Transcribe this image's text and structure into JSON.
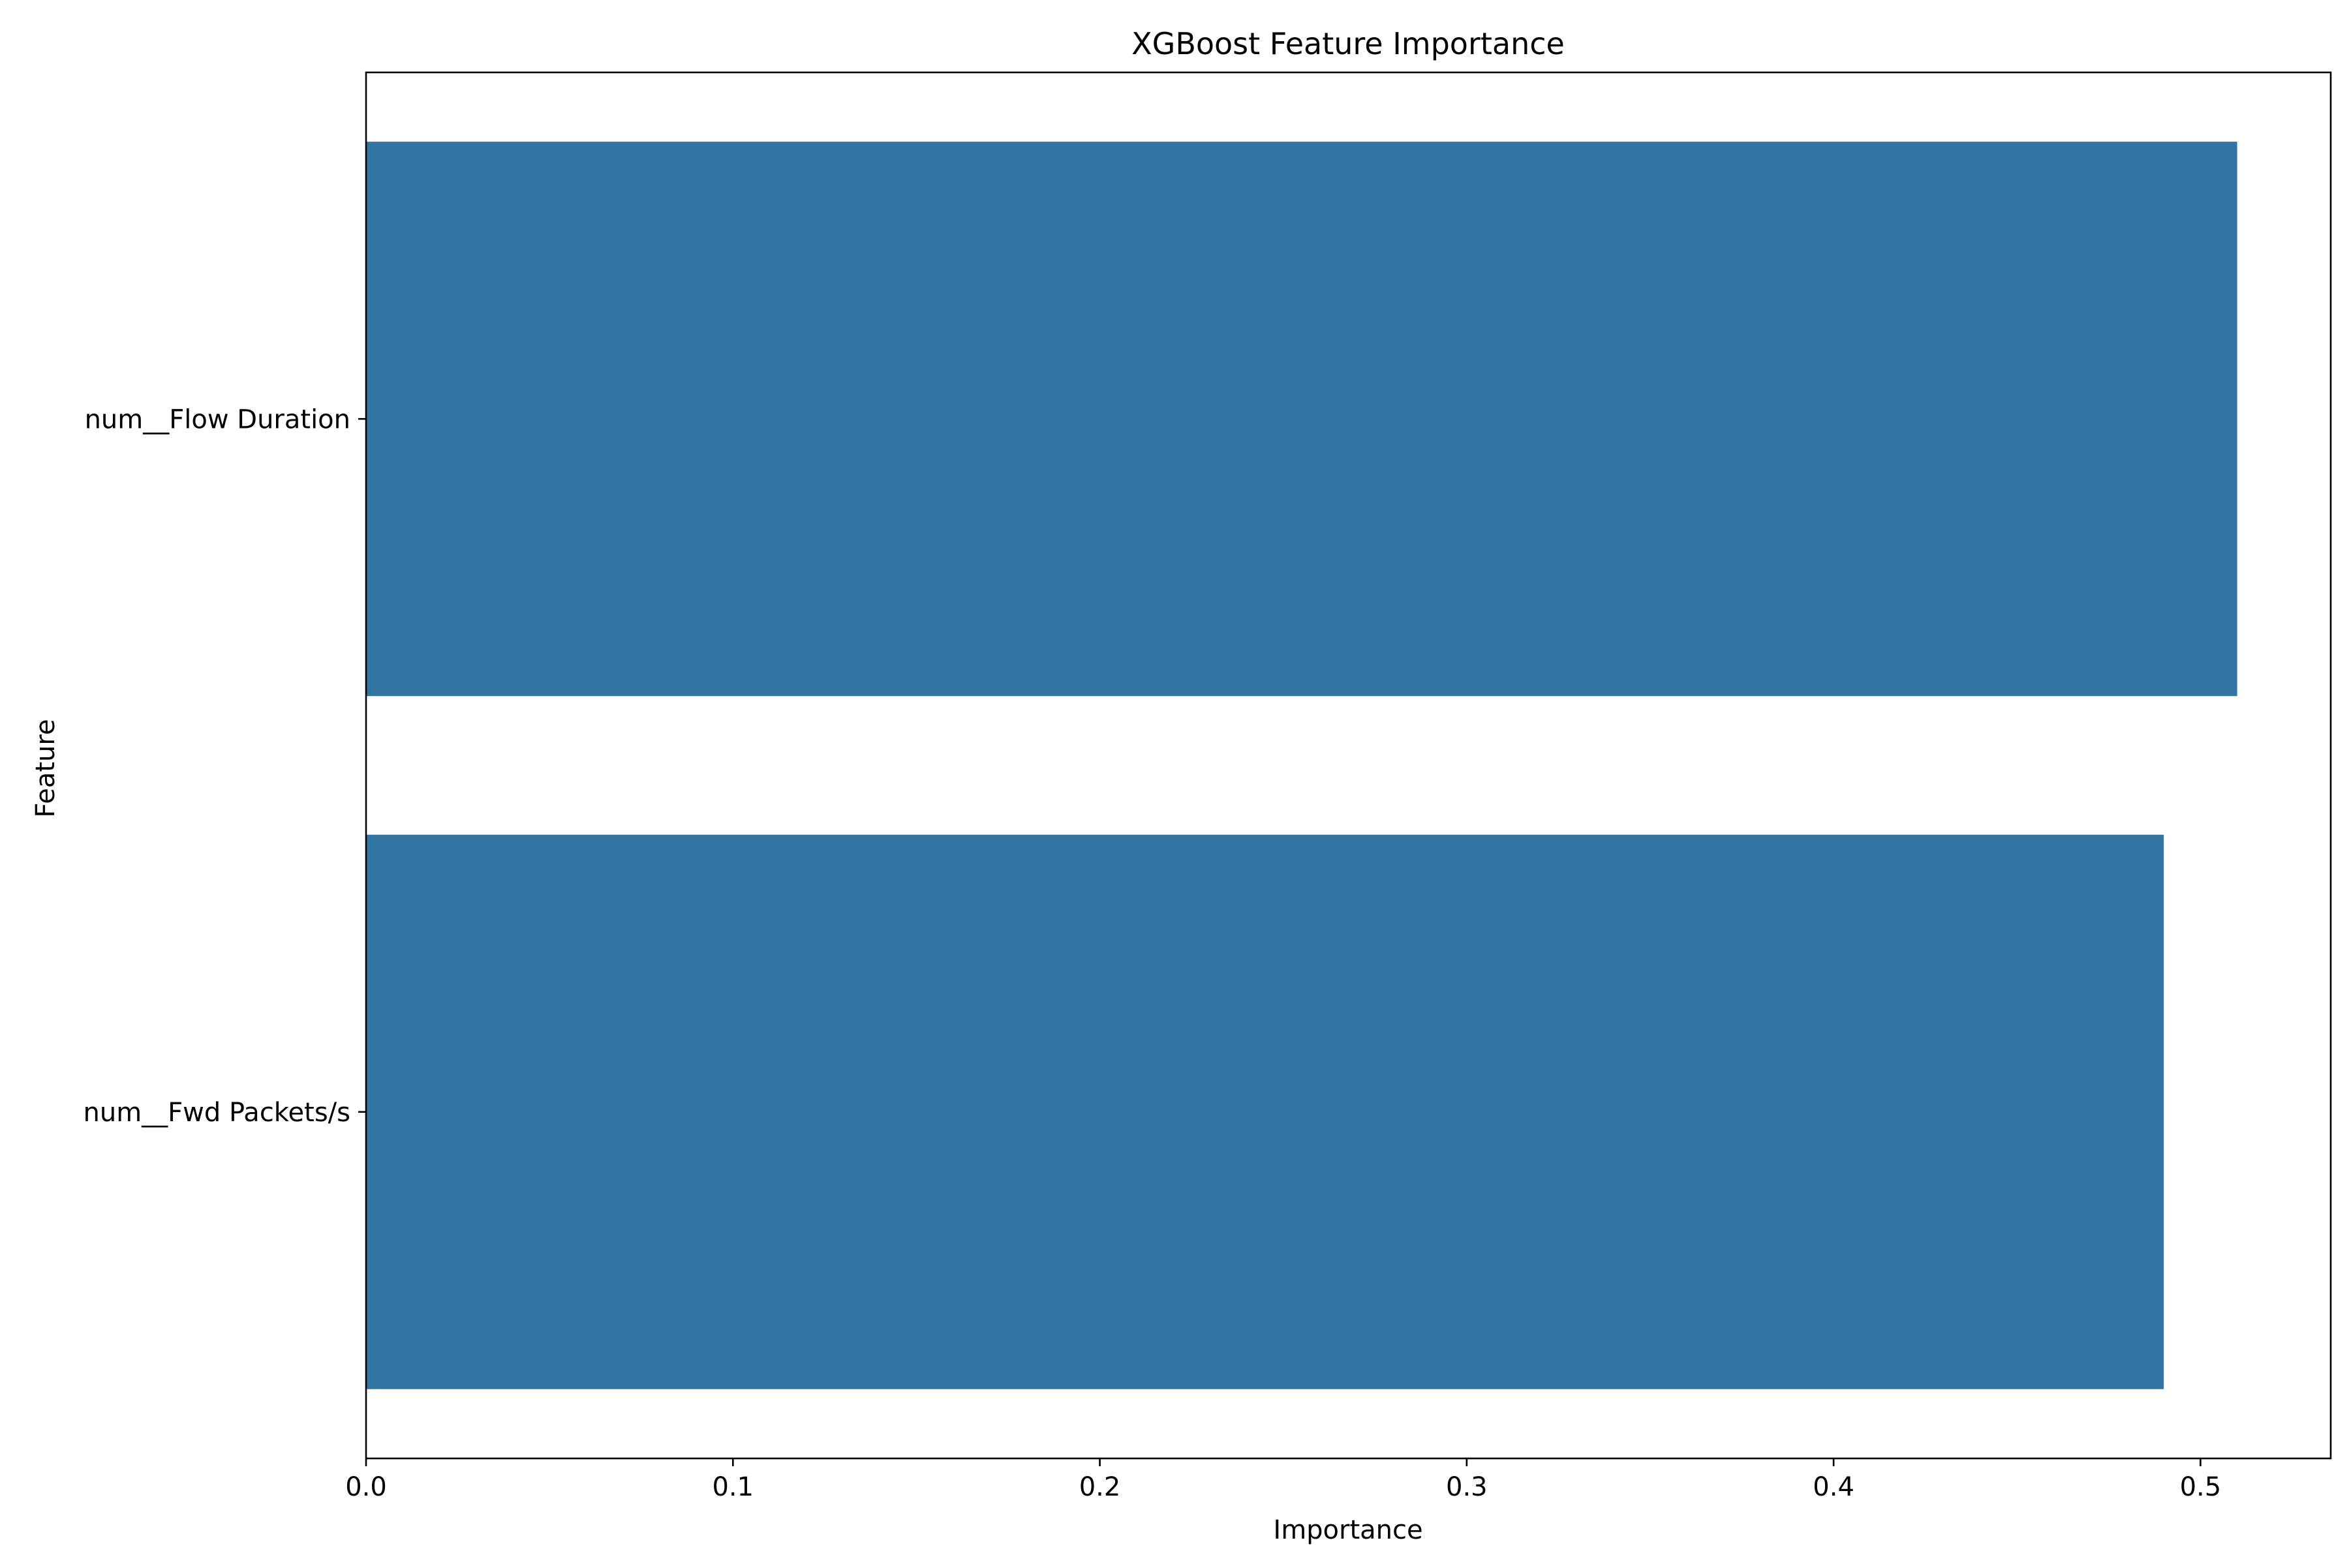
{
  "chart_data": {
    "type": "bar",
    "orientation": "horizontal",
    "title": "XGBoost Feature Importance",
    "xlabel": "Importance",
    "ylabel": "Feature",
    "categories": [
      "num__Flow Duration",
      "num__Fwd Packets/s"
    ],
    "values": [
      0.51,
      0.49
    ],
    "xlim": [
      0,
      0.5355
    ],
    "xticks": [
      0.0,
      0.1,
      0.2,
      0.3,
      0.4,
      0.5
    ],
    "xtick_labels": [
      "0.0",
      "0.1",
      "0.2",
      "0.3",
      "0.4",
      "0.5"
    ],
    "grid": false,
    "legend": "none",
    "bar_color": "#3274a1"
  }
}
